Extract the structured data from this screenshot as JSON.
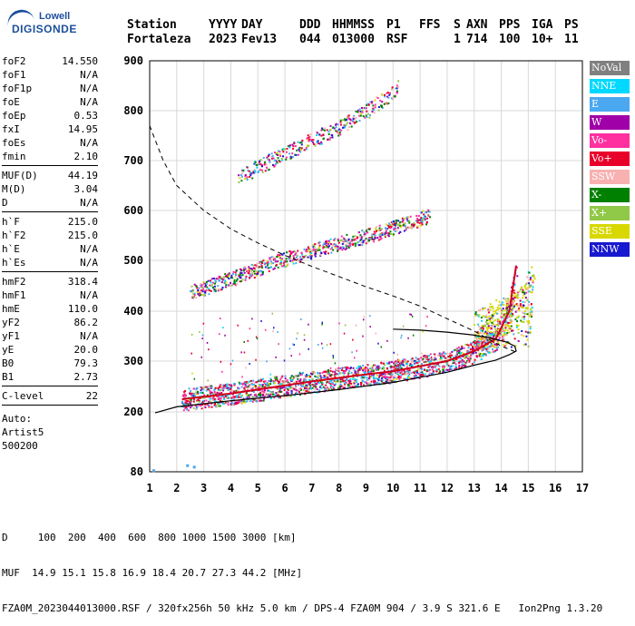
{
  "logo": {
    "line1": "Lowell",
    "line2": "DIGISONDE"
  },
  "header": {
    "labels": [
      "Station",
      "YYYY",
      "DAY",
      "DDD",
      "HHMMSS",
      "P1",
      "FFS",
      "S",
      "AXN",
      "PPS",
      "IGA",
      "PS"
    ],
    "values": [
      "Fortaleza",
      "2023",
      "Fev13",
      "044",
      "013000",
      "RSF",
      "",
      "1",
      "714",
      "100",
      "10+",
      "11"
    ]
  },
  "params": {
    "group1": [
      {
        "k": "foF2",
        "v": "14.550"
      },
      {
        "k": "foF1",
        "v": "N/A"
      },
      {
        "k": "foF1p",
        "v": "N/A"
      },
      {
        "k": "foE",
        "v": "N/A"
      },
      {
        "k": "foEp",
        "v": "0.53"
      },
      {
        "k": "fxI",
        "v": "14.95"
      },
      {
        "k": "foEs",
        "v": "N/A"
      },
      {
        "k": "fmin",
        "v": "2.10"
      }
    ],
    "group2": [
      {
        "k": "MUF(D)",
        "v": "44.19"
      },
      {
        "k": "M(D)",
        "v": "3.04"
      },
      {
        "k": "D",
        "v": "N/A"
      }
    ],
    "group3": [
      {
        "k": "h`F",
        "v": "215.0"
      },
      {
        "k": "h`F2",
        "v": "215.0"
      },
      {
        "k": "h`E",
        "v": "N/A"
      },
      {
        "k": "h`Es",
        "v": "N/A"
      }
    ],
    "group4": [
      {
        "k": "hmF2",
        "v": "318.4"
      },
      {
        "k": "hmF1",
        "v": "N/A"
      },
      {
        "k": "hmE",
        "v": "110.0"
      },
      {
        "k": "yF2",
        "v": "86.2"
      },
      {
        "k": "yF1",
        "v": "N/A"
      },
      {
        "k": "yE",
        "v": "20.0"
      },
      {
        "k": "B0",
        "v": "79.3"
      },
      {
        "k": "B1",
        "v": "2.73"
      }
    ],
    "group5": [
      {
        "k": "C-level",
        "v": "22"
      }
    ],
    "auto": [
      "Auto:",
      "Artist5",
      "500200"
    ]
  },
  "legend": [
    {
      "label": "NoVal",
      "color": "#808080"
    },
    {
      "label": "NNE",
      "color": "#00d8ff"
    },
    {
      "label": "E",
      "color": "#4aa8f0"
    },
    {
      "label": "W",
      "color": "#a000a8"
    },
    {
      "label": "Vo-",
      "color": "#ff30a0"
    },
    {
      "label": "Vo+",
      "color": "#e8002a"
    },
    {
      "label": "SSW",
      "color": "#f8b0b0"
    },
    {
      "label": "X-",
      "color": "#008000"
    },
    {
      "label": "X+",
      "color": "#90c848"
    },
    {
      "label": "SSE",
      "color": "#d8d800"
    },
    {
      "label": "NNW",
      "color": "#1818d0"
    }
  ],
  "footer": {
    "line1": "D     100  200  400  600  800 1000 1500 3000 [km]",
    "line2": "MUF  14.9 15.1 15.8 16.9 18.4 20.7 27.3 44.2 [MHz]",
    "line3": "FZA0M_2023044013000.RSF / 320fx256h 50 kHz 5.0 km / DPS-4 FZA0M 904 / 3.9 S 321.6 E   Ion2Png 1.3.20"
  },
  "chart_data": {
    "type": "scatter",
    "xlim": [
      1,
      17
    ],
    "ylim": [
      80,
      900
    ],
    "xticks": [
      1,
      2,
      3,
      4,
      5,
      6,
      7,
      8,
      9,
      10,
      11,
      12,
      13,
      14,
      15,
      16,
      17
    ],
    "yticks": [
      80,
      200,
      300,
      400,
      500,
      600,
      700,
      800,
      900
    ],
    "grid": true,
    "traces": [
      {
        "name": "F2 O-trace",
        "points": [
          [
            2.2,
            225
          ],
          [
            3,
            230
          ],
          [
            4,
            236
          ],
          [
            5,
            244
          ],
          [
            6,
            252
          ],
          [
            7,
            260
          ],
          [
            8,
            267
          ],
          [
            9,
            274
          ],
          [
            10,
            280
          ],
          [
            11,
            290
          ],
          [
            12,
            300
          ],
          [
            13,
            320
          ],
          [
            13.8,
            345
          ],
          [
            14.3,
            400
          ],
          [
            14.55,
            490
          ]
        ]
      },
      {
        "name": "F2 2nd hop",
        "points": [
          [
            2.5,
            440
          ],
          [
            3.5,
            455
          ],
          [
            4.5,
            475
          ],
          [
            5.5,
            495
          ],
          [
            6.5,
            512
          ],
          [
            7.5,
            528
          ],
          [
            8.5,
            542
          ],
          [
            9.5,
            558
          ],
          [
            10.5,
            575
          ],
          [
            11.3,
            590
          ]
        ]
      },
      {
        "name": "F2 3rd hop",
        "points": [
          [
            4.3,
            670
          ],
          [
            5,
            688
          ],
          [
            6,
            715
          ],
          [
            7,
            742
          ],
          [
            8,
            768
          ],
          [
            9,
            800
          ],
          [
            9.8,
            830
          ],
          [
            10.2,
            850
          ]
        ]
      },
      {
        "name": "X-trace",
        "points": [
          [
            13,
            360
          ],
          [
            13.5,
            375
          ],
          [
            14,
            390
          ],
          [
            14.5,
            400
          ],
          [
            15,
            420
          ],
          [
            15.2,
            440
          ]
        ]
      }
    ],
    "profile_solid": [
      [
        1.2,
        198
      ],
      [
        2,
        210
      ],
      [
        4,
        222
      ],
      [
        6,
        232
      ],
      [
        8,
        244
      ],
      [
        10,
        258
      ],
      [
        12,
        278
      ],
      [
        13,
        292
      ],
      [
        13.8,
        302
      ],
      [
        14.3,
        313
      ],
      [
        14.55,
        320
      ],
      [
        14.5,
        330
      ],
      [
        14.2,
        338
      ],
      [
        13.6,
        346
      ],
      [
        13,
        352
      ],
      [
        12,
        358
      ],
      [
        11,
        362
      ],
      [
        10,
        364
      ]
    ],
    "profile_dashed": [
      [
        1,
        770
      ],
      [
        1.5,
        700
      ],
      [
        2,
        650
      ],
      [
        3,
        600
      ],
      [
        4,
        563
      ],
      [
        5,
        535
      ],
      [
        6,
        510
      ],
      [
        7,
        488
      ],
      [
        8,
        468
      ],
      [
        9,
        448
      ],
      [
        10,
        430
      ],
      [
        11,
        410
      ],
      [
        12,
        385
      ],
      [
        13,
        360
      ],
      [
        14,
        330
      ],
      [
        14.55,
        318
      ]
    ]
  }
}
